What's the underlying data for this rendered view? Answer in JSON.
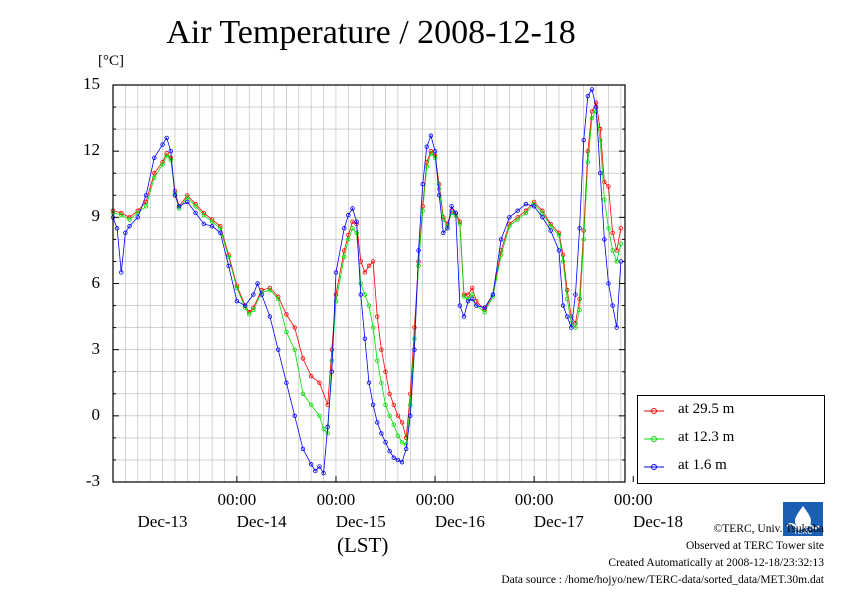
{
  "chart_data": {
    "type": "line",
    "title": "Air Temperature / 2008-12-18",
    "ylabel": "[°C]",
    "xlabel": "(LST)",
    "ylim": [
      -3,
      15
    ],
    "yticks": [
      "15",
      "12",
      "9",
      "6",
      "3",
      "0",
      "-3"
    ],
    "xtick_times": [
      "00:00",
      "00:00",
      "00:00",
      "00:00",
      "00:00"
    ],
    "xtick_days": [
      "Dec-13",
      "Dec-14",
      "Dec-15",
      "Dec-16",
      "Dec-17",
      "Dec-18"
    ],
    "x_unit": "hours since 2008-12-12 18:00",
    "grid": true,
    "legend_position": "bottom-right outside",
    "series": [
      {
        "name": "at 29.5 m",
        "color": "#ff0000",
        "points": [
          [
            0,
            9.3
          ],
          [
            2,
            9.2
          ],
          [
            4,
            9.0
          ],
          [
            6,
            9.3
          ],
          [
            8,
            9.7
          ],
          [
            10,
            11.0
          ],
          [
            12,
            11.5
          ],
          [
            13,
            11.9
          ],
          [
            14,
            11.7
          ],
          [
            15,
            10.2
          ],
          [
            16,
            9.5
          ],
          [
            18,
            10.0
          ],
          [
            20,
            9.6
          ],
          [
            22,
            9.2
          ],
          [
            24,
            8.9
          ],
          [
            26,
            8.6
          ],
          [
            28,
            7.3
          ],
          [
            30,
            5.9
          ],
          [
            32,
            5.0
          ],
          [
            33,
            4.7
          ],
          [
            34,
            4.9
          ],
          [
            36,
            5.7
          ],
          [
            38,
            5.8
          ],
          [
            40,
            5.4
          ],
          [
            42,
            4.6
          ],
          [
            44,
            4.0
          ],
          [
            46,
            2.6
          ],
          [
            48,
            1.8
          ],
          [
            50,
            1.5
          ],
          [
            52,
            0.5
          ],
          [
            53,
            3.0
          ],
          [
            54,
            5.5
          ],
          [
            56,
            7.5
          ],
          [
            57,
            8.2
          ],
          [
            58,
            8.8
          ],
          [
            59,
            8.7
          ],
          [
            60,
            7.0
          ],
          [
            61,
            6.5
          ],
          [
            62,
            6.8
          ],
          [
            63,
            7.0
          ],
          [
            64,
            4.5
          ],
          [
            65,
            3.0
          ],
          [
            66,
            2.0
          ],
          [
            67,
            1.0
          ],
          [
            68,
            0.5
          ],
          [
            69,
            0.0
          ],
          [
            70,
            -0.3
          ],
          [
            71,
            -1.0
          ],
          [
            72,
            1.0
          ],
          [
            73,
            4.0
          ],
          [
            74,
            7.0
          ],
          [
            75,
            9.5
          ],
          [
            76,
            11.5
          ],
          [
            77,
            12.0
          ],
          [
            78,
            11.8
          ],
          [
            79,
            10.5
          ],
          [
            80,
            9.0
          ],
          [
            81,
            8.7
          ],
          [
            82,
            9.3
          ],
          [
            83,
            9.2
          ],
          [
            84,
            8.8
          ],
          [
            85,
            5.5
          ],
          [
            86,
            5.5
          ],
          [
            87,
            5.8
          ],
          [
            88,
            5.2
          ],
          [
            90,
            4.8
          ],
          [
            92,
            5.5
          ],
          [
            94,
            7.5
          ],
          [
            96,
            8.7
          ],
          [
            98,
            9.0
          ],
          [
            100,
            9.3
          ],
          [
            102,
            9.7
          ],
          [
            104,
            9.3
          ],
          [
            106,
            8.7
          ],
          [
            108,
            8.3
          ],
          [
            109,
            7.3
          ],
          [
            110,
            5.7
          ],
          [
            111,
            4.5
          ],
          [
            112,
            4.2
          ],
          [
            113,
            5.3
          ],
          [
            114,
            8.4
          ],
          [
            115,
            12.0
          ],
          [
            116,
            13.8
          ],
          [
            117,
            14.2
          ],
          [
            118,
            13.0
          ],
          [
            119,
            10.6
          ],
          [
            120,
            10.4
          ],
          [
            121,
            8.3
          ],
          [
            122,
            7.5
          ],
          [
            123,
            8.5
          ]
        ]
      },
      {
        "name": "at 12.3 m",
        "color": "#00dd00",
        "points": [
          [
            0,
            9.2
          ],
          [
            2,
            9.1
          ],
          [
            4,
            8.9
          ],
          [
            6,
            9.2
          ],
          [
            8,
            9.5
          ],
          [
            10,
            10.8
          ],
          [
            12,
            11.4
          ],
          [
            13,
            11.8
          ],
          [
            14,
            11.6
          ],
          [
            15,
            10.1
          ],
          [
            16,
            9.4
          ],
          [
            18,
            9.9
          ],
          [
            20,
            9.5
          ],
          [
            22,
            9.1
          ],
          [
            24,
            8.8
          ],
          [
            26,
            8.5
          ],
          [
            28,
            7.2
          ],
          [
            30,
            5.8
          ],
          [
            32,
            4.9
          ],
          [
            33,
            4.6
          ],
          [
            34,
            4.8
          ],
          [
            36,
            5.6
          ],
          [
            38,
            5.7
          ],
          [
            40,
            5.3
          ],
          [
            42,
            3.8
          ],
          [
            44,
            3.0
          ],
          [
            46,
            1.0
          ],
          [
            48,
            0.5
          ],
          [
            50,
            0.0
          ],
          [
            51,
            -0.6
          ],
          [
            52,
            -0.8
          ],
          [
            53,
            2.5
          ],
          [
            54,
            5.2
          ],
          [
            56,
            7.2
          ],
          [
            57,
            8.0
          ],
          [
            58,
            8.5
          ],
          [
            59,
            8.3
          ],
          [
            60,
            6.0
          ],
          [
            61,
            5.5
          ],
          [
            62,
            5.0
          ],
          [
            63,
            4.0
          ],
          [
            64,
            2.5
          ],
          [
            65,
            1.5
          ],
          [
            66,
            0.5
          ],
          [
            67,
            0.0
          ],
          [
            68,
            -0.4
          ],
          [
            69,
            -0.9
          ],
          [
            70,
            -1.2
          ],
          [
            71,
            -1.3
          ],
          [
            72,
            0.5
          ],
          [
            73,
            3.5
          ],
          [
            74,
            6.8
          ],
          [
            75,
            9.3
          ],
          [
            76,
            11.3
          ],
          [
            77,
            11.9
          ],
          [
            78,
            11.7
          ],
          [
            79,
            10.3
          ],
          [
            80,
            8.9
          ],
          [
            81,
            8.6
          ],
          [
            82,
            9.2
          ],
          [
            83,
            9.1
          ],
          [
            84,
            8.7
          ],
          [
            85,
            5.4
          ],
          [
            86,
            5.3
          ],
          [
            87,
            5.5
          ],
          [
            88,
            5.0
          ],
          [
            90,
            4.7
          ],
          [
            92,
            5.4
          ],
          [
            94,
            7.3
          ],
          [
            96,
            8.6
          ],
          [
            98,
            8.9
          ],
          [
            100,
            9.2
          ],
          [
            102,
            9.6
          ],
          [
            104,
            9.2
          ],
          [
            106,
            8.6
          ],
          [
            108,
            8.2
          ],
          [
            109,
            7.0
          ],
          [
            110,
            5.3
          ],
          [
            111,
            4.2
          ],
          [
            112,
            4.0
          ],
          [
            113,
            4.8
          ],
          [
            114,
            8.0
          ],
          [
            115,
            11.5
          ],
          [
            116,
            13.5
          ],
          [
            117,
            13.8
          ],
          [
            118,
            12.5
          ],
          [
            119,
            9.8
          ],
          [
            120,
            8.5
          ],
          [
            121,
            7.5
          ],
          [
            122,
            7.0
          ],
          [
            123,
            7.8
          ]
        ]
      },
      {
        "name": "at 1.6 m",
        "color": "#0000ff",
        "points": [
          [
            0,
            9.0
          ],
          [
            1,
            8.5
          ],
          [
            2,
            6.5
          ],
          [
            3,
            8.3
          ],
          [
            4,
            8.6
          ],
          [
            6,
            9.0
          ],
          [
            8,
            10.0
          ],
          [
            10,
            11.7
          ],
          [
            12,
            12.3
          ],
          [
            13,
            12.6
          ],
          [
            14,
            12.0
          ],
          [
            15,
            10.0
          ],
          [
            16,
            9.5
          ],
          [
            18,
            9.7
          ],
          [
            20,
            9.2
          ],
          [
            22,
            8.7
          ],
          [
            24,
            8.6
          ],
          [
            26,
            8.3
          ],
          [
            28,
            6.8
          ],
          [
            30,
            5.2
          ],
          [
            32,
            5.0
          ],
          [
            34,
            5.5
          ],
          [
            35,
            6.0
          ],
          [
            36,
            5.5
          ],
          [
            38,
            4.5
          ],
          [
            40,
            3.0
          ],
          [
            42,
            1.5
          ],
          [
            44,
            0.0
          ],
          [
            46,
            -1.5
          ],
          [
            48,
            -2.2
          ],
          [
            49,
            -2.5
          ],
          [
            50,
            -2.3
          ],
          [
            51,
            -2.6
          ],
          [
            52,
            -0.5
          ],
          [
            53,
            2.0
          ],
          [
            54,
            6.5
          ],
          [
            56,
            8.5
          ],
          [
            57,
            9.1
          ],
          [
            58,
            9.4
          ],
          [
            59,
            8.8
          ],
          [
            60,
            5.5
          ],
          [
            61,
            3.5
          ],
          [
            62,
            1.5
          ],
          [
            63,
            0.5
          ],
          [
            64,
            -0.3
          ],
          [
            65,
            -0.8
          ],
          [
            66,
            -1.2
          ],
          [
            67,
            -1.6
          ],
          [
            68,
            -1.9
          ],
          [
            69,
            -2.0
          ],
          [
            70,
            -2.1
          ],
          [
            71,
            -1.5
          ],
          [
            72,
            0.0
          ],
          [
            73,
            3.0
          ],
          [
            74,
            7.5
          ],
          [
            75,
            10.5
          ],
          [
            76,
            12.2
          ],
          [
            77,
            12.7
          ],
          [
            78,
            12.0
          ],
          [
            79,
            10.0
          ],
          [
            80,
            8.3
          ],
          [
            81,
            8.5
          ],
          [
            82,
            9.5
          ],
          [
            83,
            9.2
          ],
          [
            84,
            5.0
          ],
          [
            85,
            4.5
          ],
          [
            86,
            5.2
          ],
          [
            87,
            5.3
          ],
          [
            88,
            5.0
          ],
          [
            90,
            4.9
          ],
          [
            92,
            5.5
          ],
          [
            94,
            8.0
          ],
          [
            96,
            9.0
          ],
          [
            98,
            9.3
          ],
          [
            100,
            9.6
          ],
          [
            102,
            9.5
          ],
          [
            104,
            9.0
          ],
          [
            106,
            8.4
          ],
          [
            108,
            7.5
          ],
          [
            109,
            5.0
          ],
          [
            110,
            4.5
          ],
          [
            111,
            4.0
          ],
          [
            112,
            5.5
          ],
          [
            113,
            8.5
          ],
          [
            114,
            12.5
          ],
          [
            115,
            14.5
          ],
          [
            116,
            14.8
          ],
          [
            117,
            14.0
          ],
          [
            118,
            11.0
          ],
          [
            119,
            8.0
          ],
          [
            120,
            6.0
          ],
          [
            121,
            5.0
          ],
          [
            122,
            4.0
          ],
          [
            123,
            7.0
          ]
        ]
      }
    ]
  },
  "credits": {
    "line1": "©TERC, Univ. Tsukuba",
    "line2": "Observed at TERC Tower site",
    "line3": "Created Automatically at 2008-12-18/23:32:13",
    "line4": "Data source : /home/hojyo/new/TERC-data/sorted_data/MET.30m.dat",
    "logo_text": "TERC"
  }
}
